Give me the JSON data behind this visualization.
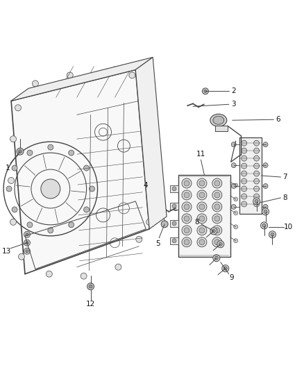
{
  "background_color": "#ffffff",
  "line_color": "#444444",
  "gray_color": "#888888",
  "light_gray": "#cccccc",
  "fig_width": 4.38,
  "fig_height": 5.33,
  "dpi": 100,
  "xlim": [
    0,
    438
  ],
  "ylim": [
    0,
    533
  ]
}
